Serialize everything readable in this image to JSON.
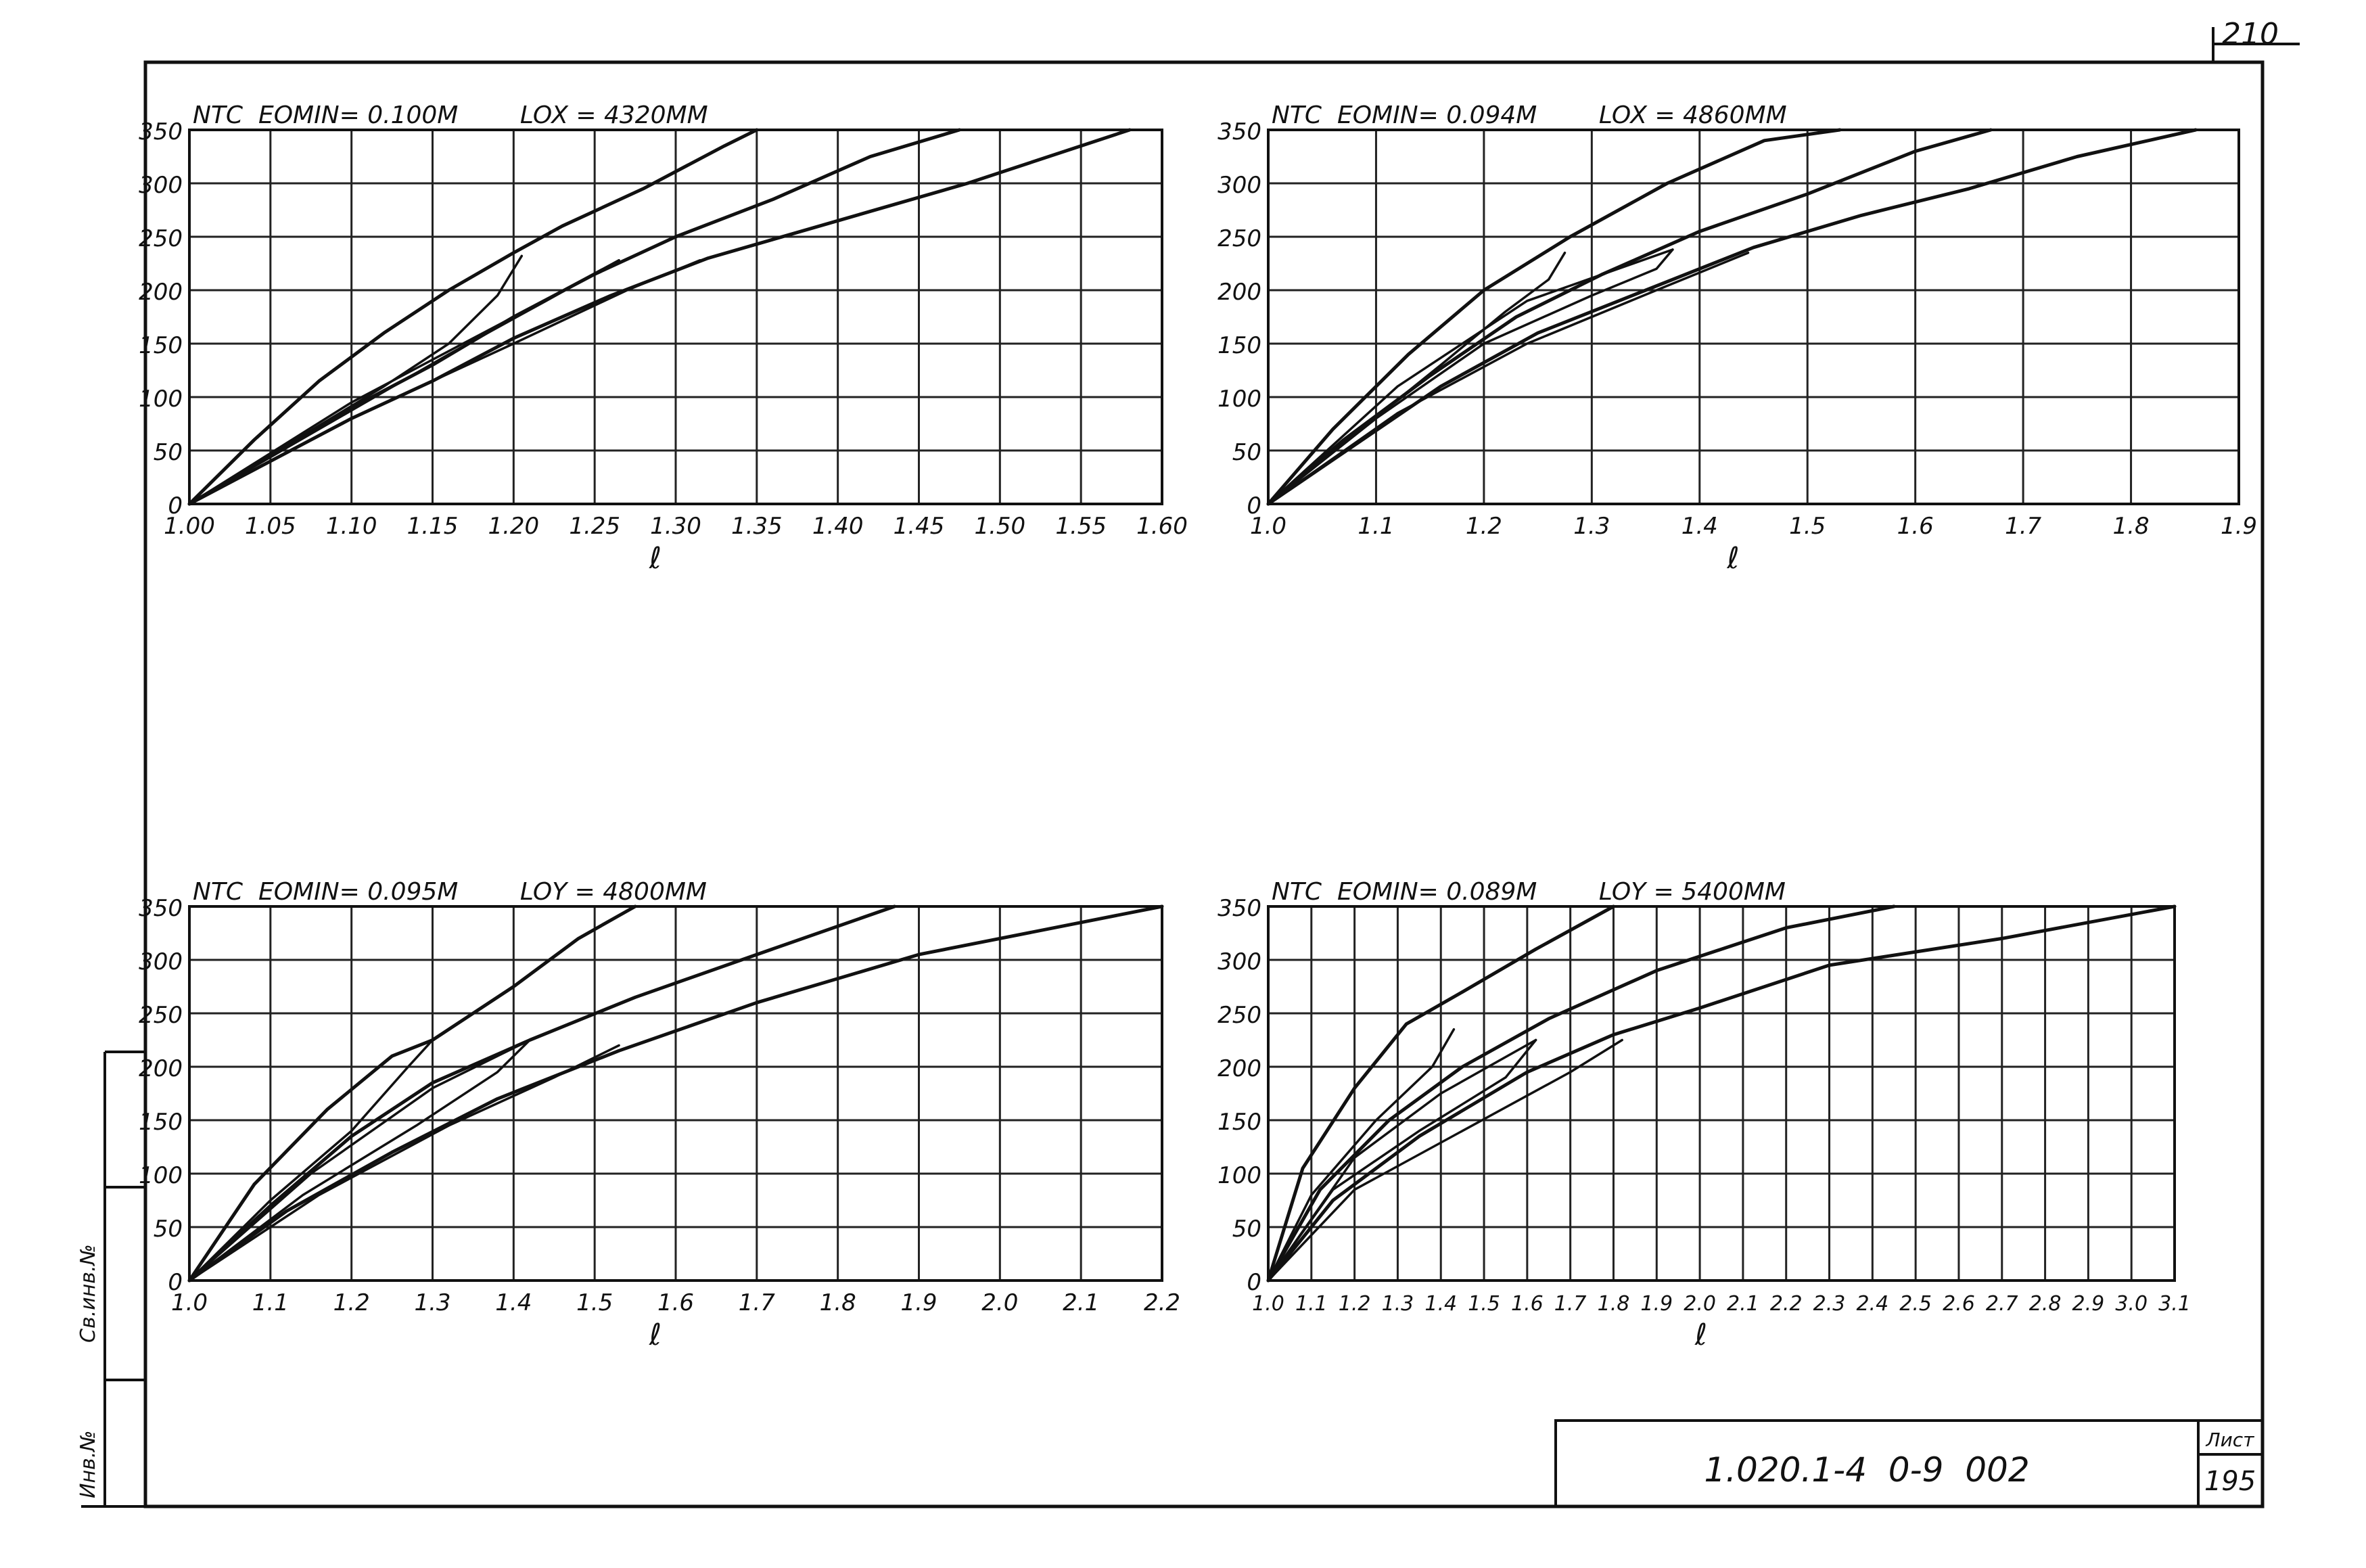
{
  "sheet": {
    "top_right_number": "210",
    "doc_code": "1.020.1-4  0-9  002",
    "sheet_label": "Лист",
    "sheet_number": "195",
    "side_stamp_top": "Св.инв.№",
    "side_stamp_bottom": "Инв.№"
  },
  "chart_data": [
    {
      "type": "line",
      "title": "NTC  EOMIN= 0.100M        LOX = 4320MM",
      "xlabel": "ℓ",
      "ylabel": "",
      "ylim": [
        0,
        350
      ],
      "xlim": [
        1.0,
        1.6
      ],
      "grid": true,
      "x_ticks": [
        1.0,
        1.05,
        1.1,
        1.15,
        1.2,
        1.25,
        1.3,
        1.35,
        1.4,
        1.45,
        1.5,
        1.55,
        1.6
      ],
      "x_tick_labels": [
        "1.00",
        "1.05",
        "1.10",
        "1.15",
        "1.20",
        "1.25",
        "1.30",
        "1.35",
        "1.40",
        "1.45",
        "1.50",
        "1.55",
        "1.60"
      ],
      "y_ticks": [
        0,
        50,
        100,
        150,
        200,
        250,
        300,
        350
      ],
      "y_tick_labels": [
        "0",
        "50",
        "100",
        "150",
        "200",
        "250",
        "300",
        "350"
      ],
      "series": [
        {
          "x": [
            1.0,
            1.04,
            1.08,
            1.12,
            1.16,
            1.2,
            1.23,
            1.28,
            1.33,
            1.35
          ],
          "y": [
            0,
            60,
            115,
            160,
            200,
            235,
            260,
            295,
            335,
            350
          ]
        },
        {
          "x": [
            1.0,
            1.05,
            1.1,
            1.15,
            1.2,
            1.25,
            1.3,
            1.36,
            1.42,
            1.475
          ],
          "y": [
            0,
            45,
            90,
            130,
            175,
            215,
            250,
            285,
            325,
            350
          ]
        },
        {
          "x": [
            1.0,
            1.05,
            1.1,
            1.15,
            1.2,
            1.26,
            1.32,
            1.4,
            1.48,
            1.58
          ],
          "y": [
            0,
            40,
            80,
            115,
            155,
            195,
            230,
            265,
            300,
            350
          ]
        },
        {
          "x": [
            1.0,
            1.06,
            1.12,
            1.16,
            1.19,
            1.205
          ],
          "y": [
            0,
            55,
            110,
            150,
            195,
            232
          ]
        },
        {
          "x": [
            1.0,
            1.08,
            1.16,
            1.22,
            1.265
          ],
          "y": [
            0,
            70,
            140,
            190,
            228
          ]
        },
        {
          "x": [
            1.0,
            1.1,
            1.2,
            1.27,
            1.315
          ],
          "y": [
            0,
            80,
            150,
            200,
            228
          ]
        },
        {
          "x": [
            1.0,
            1.1,
            1.2,
            1.265
          ],
          "y": [
            0,
            95,
            175,
            228
          ]
        }
      ]
    },
    {
      "type": "line",
      "title": "NTC  EOMIN= 0.094M        LOX = 4860MM",
      "xlabel": "ℓ",
      "ylabel": "",
      "ylim": [
        0,
        350
      ],
      "xlim": [
        1.0,
        1.9
      ],
      "grid": true,
      "x_ticks": [
        1.0,
        1.1,
        1.2,
        1.3,
        1.4,
        1.5,
        1.6,
        1.7,
        1.8,
        1.9
      ],
      "x_tick_labels": [
        "1.0",
        "1.1",
        "1.2",
        "1.3",
        "1.4",
        "1.5",
        "1.6",
        "1.7",
        "1.8",
        "1.9"
      ],
      "y_ticks": [
        0,
        50,
        100,
        150,
        200,
        250,
        300,
        350
      ],
      "y_tick_labels": [
        "0",
        "50",
        "100",
        "150",
        "200",
        "250",
        "300",
        "350"
      ],
      "series": [
        {
          "x": [
            1.0,
            1.06,
            1.13,
            1.2,
            1.28,
            1.37,
            1.46,
            1.53
          ],
          "y": [
            0,
            70,
            140,
            200,
            250,
            300,
            340,
            350
          ]
        },
        {
          "x": [
            1.0,
            1.07,
            1.15,
            1.23,
            1.31,
            1.4,
            1.5,
            1.6,
            1.67
          ],
          "y": [
            0,
            60,
            120,
            175,
            215,
            255,
            290,
            330,
            350
          ]
        },
        {
          "x": [
            1.0,
            1.08,
            1.16,
            1.25,
            1.35,
            1.45,
            1.55,
            1.65,
            1.75,
            1.86
          ],
          "y": [
            0,
            55,
            110,
            160,
            200,
            240,
            270,
            295,
            325,
            350
          ]
        },
        {
          "x": [
            1.0,
            1.08,
            1.16,
            1.22,
            1.26,
            1.275
          ],
          "y": [
            0,
            65,
            130,
            180,
            210,
            235
          ]
        },
        {
          "x": [
            1.0,
            1.1,
            1.2,
            1.3,
            1.36,
            1.375
          ],
          "y": [
            0,
            80,
            150,
            195,
            220,
            238
          ]
        },
        {
          "x": [
            1.0,
            1.12,
            1.24,
            1.36,
            1.445
          ],
          "y": [
            0,
            85,
            150,
            200,
            235
          ]
        },
        {
          "x": [
            1.0,
            1.12,
            1.24,
            1.375
          ],
          "y": [
            0,
            110,
            190,
            238
          ]
        }
      ]
    },
    {
      "type": "line",
      "title": "NTC  EOMIN= 0.095M        LOY = 4800MM",
      "xlabel": "ℓ",
      "ylabel": "",
      "ylim": [
        0,
        350
      ],
      "xlim": [
        1.0,
        2.2
      ],
      "grid": true,
      "x_ticks": [
        1.0,
        1.1,
        1.2,
        1.3,
        1.4,
        1.5,
        1.6,
        1.7,
        1.8,
        1.9,
        2.0,
        2.1,
        2.2
      ],
      "x_tick_labels": [
        "1.0",
        "1.1",
        "1.2",
        "1.3",
        "1.4",
        "1.5",
        "1.6",
        "1.7",
        "1.8",
        "1.9",
        "2.0",
        "2.1",
        "2.2"
      ],
      "y_ticks": [
        0,
        50,
        100,
        150,
        200,
        250,
        300,
        350
      ],
      "y_tick_labels": [
        "0",
        "50",
        "100",
        "150",
        "200",
        "250",
        "300",
        "350"
      ],
      "series": [
        {
          "x": [
            1.0,
            1.08,
            1.17,
            1.25,
            1.3,
            1.4,
            1.48,
            1.55
          ],
          "y": [
            0,
            90,
            160,
            210,
            225,
            275,
            320,
            350
          ]
        },
        {
          "x": [
            1.0,
            1.1,
            1.2,
            1.3,
            1.42,
            1.55,
            1.7,
            1.87
          ],
          "y": [
            0,
            70,
            135,
            185,
            225,
            265,
            305,
            350
          ]
        },
        {
          "x": [
            1.0,
            1.12,
            1.25,
            1.38,
            1.53,
            1.7,
            1.9,
            2.2
          ],
          "y": [
            0,
            65,
            120,
            170,
            215,
            260,
            305,
            350
          ]
        },
        {
          "x": [
            1.0,
            1.1,
            1.2,
            1.27,
            1.3
          ],
          "y": [
            0,
            75,
            140,
            200,
            225
          ]
        },
        {
          "x": [
            1.0,
            1.14,
            1.28,
            1.38,
            1.42
          ],
          "y": [
            0,
            80,
            145,
            195,
            225
          ]
        },
        {
          "x": [
            1.0,
            1.16,
            1.32,
            1.45,
            1.53
          ],
          "y": [
            0,
            80,
            145,
            190,
            220
          ]
        },
        {
          "x": [
            1.0,
            1.15,
            1.3,
            1.42
          ],
          "y": [
            0,
            100,
            180,
            225
          ]
        }
      ]
    },
    {
      "type": "line",
      "title": "NTC  EOMIN= 0.089M        LOY = 5400MM",
      "xlabel": "ℓ",
      "ylabel": "",
      "ylim": [
        0,
        350
      ],
      "xlim": [
        1.0,
        3.1
      ],
      "grid": true,
      "x_ticks": [
        1.0,
        1.1,
        1.2,
        1.3,
        1.4,
        1.5,
        1.6,
        1.7,
        1.8,
        1.9,
        2.0,
        2.1,
        2.2,
        2.3,
        2.4,
        2.5,
        2.6,
        2.7,
        2.8,
        2.9,
        3.0,
        3.1
      ],
      "x_tick_labels": [
        "1.0",
        "1.1",
        "1.2",
        "1.3",
        "1.4",
        "1.5",
        "1.6",
        "1.7",
        "1.8",
        "1.9",
        "2.0",
        "2.1",
        "2.2",
        "2.3",
        "2.4",
        "2.5",
        "2.6",
        "2.7",
        "2.8",
        "2.9",
        "3.0",
        "3.1"
      ],
      "y_ticks": [
        0,
        50,
        100,
        150,
        200,
        250,
        300,
        350
      ],
      "y_tick_labels": [
        "0",
        "50",
        "100",
        "150",
        "200",
        "250",
        "300",
        "350"
      ],
      "series": [
        {
          "x": [
            1.0,
            1.08,
            1.2,
            1.32,
            1.45,
            1.62,
            1.8
          ],
          "y": [
            0,
            105,
            180,
            240,
            270,
            310,
            350
          ]
        },
        {
          "x": [
            1.0,
            1.12,
            1.28,
            1.45,
            1.65,
            1.9,
            2.2,
            2.45
          ],
          "y": [
            0,
            85,
            150,
            200,
            245,
            290,
            330,
            350
          ]
        },
        {
          "x": [
            1.0,
            1.15,
            1.35,
            1.6,
            1.8,
            2.0,
            2.3,
            2.7,
            3.1
          ],
          "y": [
            0,
            75,
            135,
            195,
            230,
            255,
            295,
            320,
            350
          ]
        },
        {
          "x": [
            1.0,
            1.1,
            1.25,
            1.38,
            1.43
          ],
          "y": [
            0,
            80,
            150,
            200,
            235
          ]
        },
        {
          "x": [
            1.0,
            1.15,
            1.35,
            1.55,
            1.62
          ],
          "y": [
            0,
            85,
            140,
            190,
            225
          ]
        },
        {
          "x": [
            1.0,
            1.2,
            1.45,
            1.7,
            1.82
          ],
          "y": [
            0,
            85,
            140,
            195,
            225
          ]
        },
        {
          "x": [
            1.0,
            1.2,
            1.4,
            1.62
          ],
          "y": [
            0,
            115,
            175,
            225
          ]
        }
      ]
    }
  ]
}
